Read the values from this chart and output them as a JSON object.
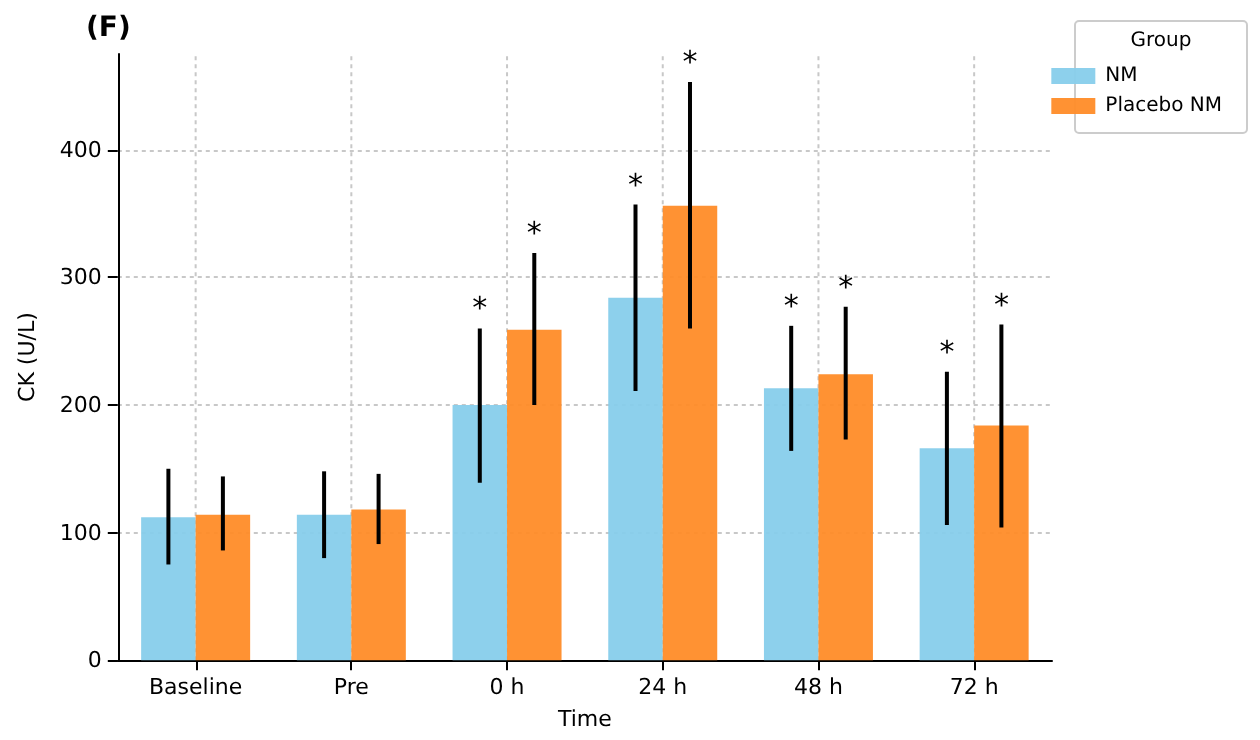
{
  "chart_data": {
    "type": "bar",
    "title": "(F)",
    "xlabel": "Time",
    "ylabel": "CK (U/L)",
    "legend_title": "Group",
    "categories": [
      "Baseline",
      "Pre",
      "0 h",
      "24 h",
      "48 h",
      "72 h"
    ],
    "series": [
      {
        "name": "NM",
        "color": "#87ceeb",
        "values": [
          112,
          114,
          200,
          284,
          213,
          166
        ],
        "errors": [
          [
            75,
            150
          ],
          [
            80,
            148
          ],
          [
            139,
            260
          ],
          [
            211,
            357
          ],
          [
            164,
            262
          ],
          [
            106,
            226
          ]
        ]
      },
      {
        "name": "Placebo NM",
        "color": "#ff8c28",
        "values": [
          114,
          118,
          259,
          356,
          224,
          184
        ],
        "errors": [
          [
            86,
            144
          ],
          [
            91,
            146
          ],
          [
            200,
            319
          ],
          [
            260,
            453
          ],
          [
            173,
            277
          ],
          [
            104,
            263
          ]
        ]
      }
    ],
    "annotations": [
      "*",
      "*",
      "*",
      "*",
      "*",
      "*",
      "*",
      "*"
    ],
    "ylim": [
      0,
      475
    ],
    "yticks": [
      0,
      100,
      200,
      300,
      400
    ],
    "grid": true,
    "legend": "top right"
  }
}
